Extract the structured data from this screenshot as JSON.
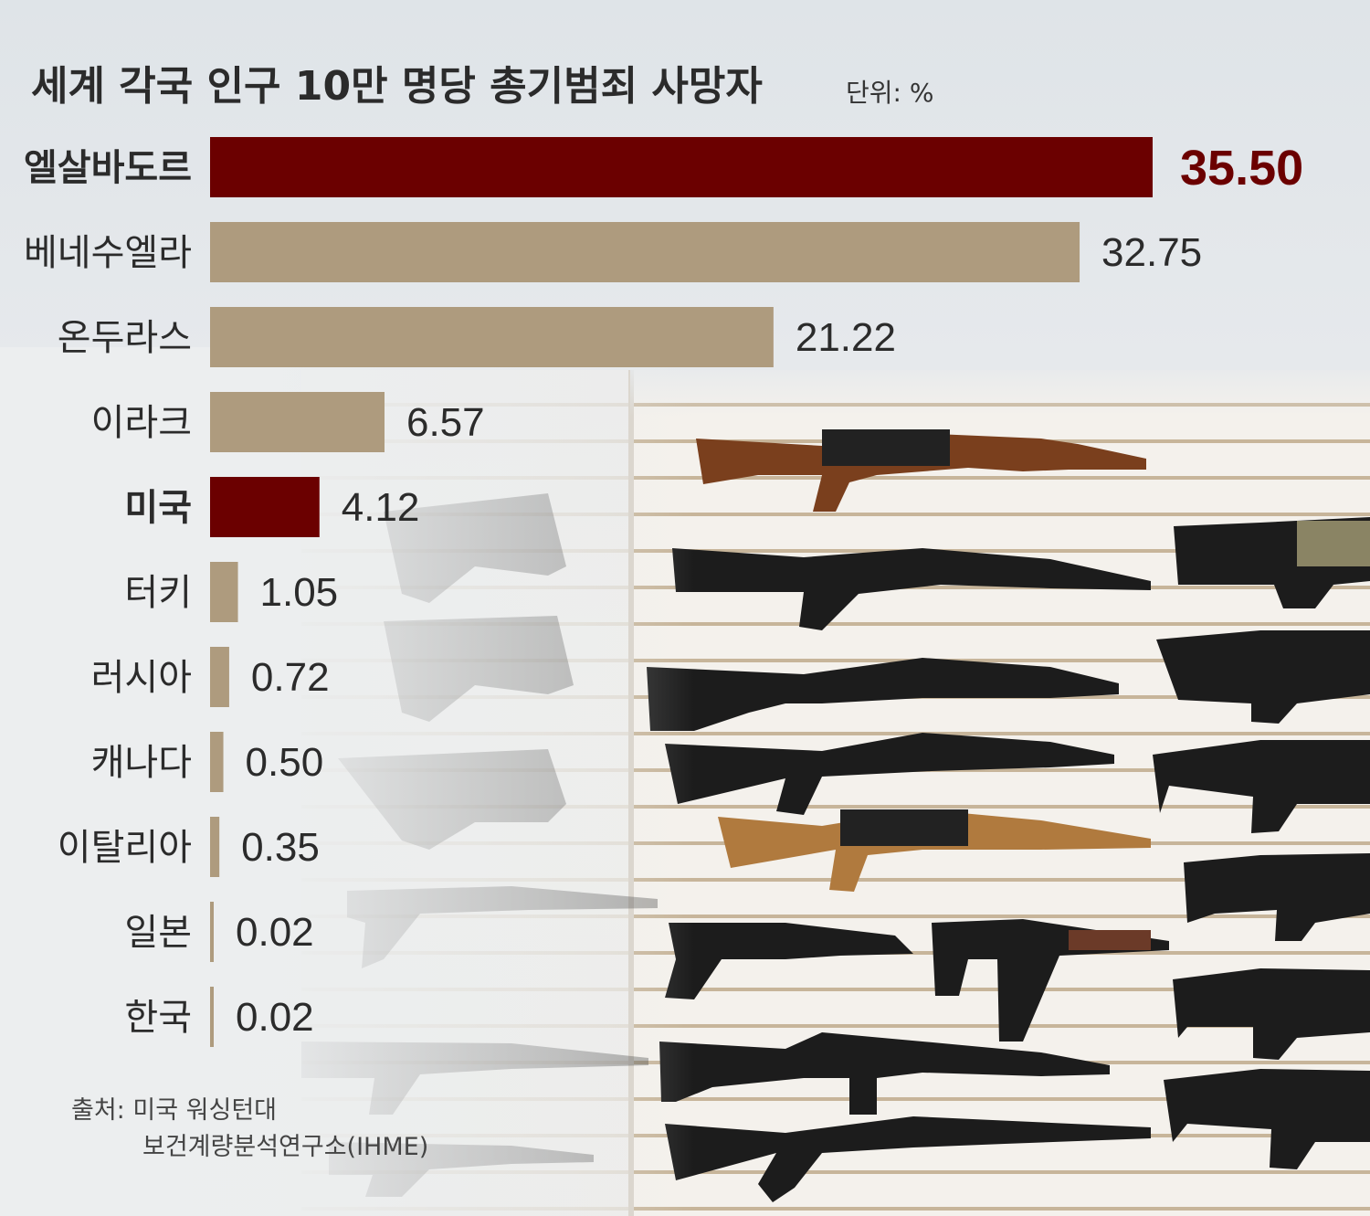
{
  "title": "세계 각국 인구 10만 명당 총기범죄 사망자",
  "unit": "단위: %",
  "source_label": "출처:",
  "source_line1": "미국 워싱턴대",
  "source_line2": "보건계량분석연구소(IHME)",
  "colors": {
    "highlight": "#6b0000",
    "normal": "#ae9b7e",
    "label": "#2b2b2b",
    "highlight_value": "#6b0000"
  },
  "chart_data": {
    "type": "bar",
    "orientation": "horizontal",
    "categories": [
      "엘살바도르",
      "베네수엘라",
      "온두라스",
      "이라크",
      "미국",
      "터키",
      "러시아",
      "캐나다",
      "이탈리아",
      "일본",
      "한국"
    ],
    "values": [
      35.5,
      32.75,
      21.22,
      6.57,
      4.12,
      1.05,
      0.72,
      0.5,
      0.35,
      0.02,
      0.02
    ],
    "value_labels": [
      "35.50",
      "32.75",
      "21.22",
      "6.57",
      "4.12",
      "1.05",
      "0.72",
      "0.50",
      "0.35",
      "0.02",
      "0.02"
    ],
    "highlighted": [
      "엘살바도르",
      "미국"
    ],
    "title": "세계 각국 인구 10만 명당 총기범죄 사망자",
    "xlabel": "",
    "ylabel": "",
    "xlim": [
      0,
      35.5
    ],
    "grid": false,
    "legend": "none"
  }
}
